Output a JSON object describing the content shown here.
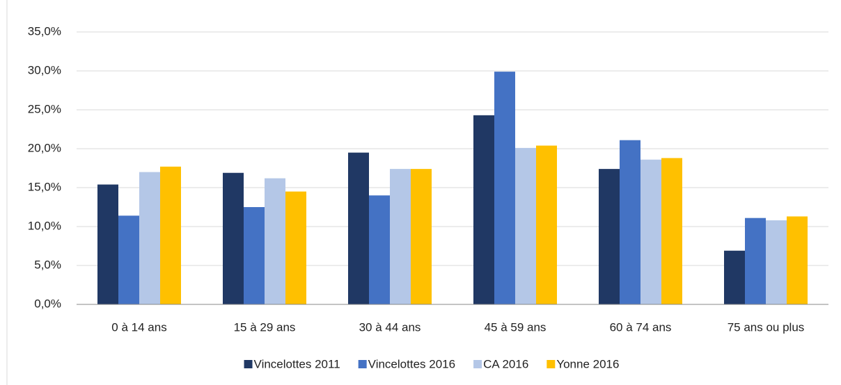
{
  "chart_data": {
    "type": "bar",
    "categories": [
      "0 à 14 ans",
      "15 à 29 ans",
      "30 à 44 ans",
      "45 à 59 ans",
      "60 à 74 ans",
      "75 ans ou plus"
    ],
    "series": [
      {
        "name": "Vincelottes 2011",
        "color": "#203864",
        "values": [
          15.4,
          16.9,
          19.5,
          24.3,
          17.4,
          6.9
        ]
      },
      {
        "name": "Vincelottes 2016",
        "color": "#4472c4",
        "values": [
          11.4,
          12.5,
          14.0,
          29.9,
          21.1,
          11.1
        ]
      },
      {
        "name": "CA 2016",
        "color": "#b4c7e7",
        "values": [
          17.0,
          16.2,
          17.4,
          20.1,
          18.6,
          10.8
        ]
      },
      {
        "name": "Yonne 2016",
        "color": "#ffc000",
        "values": [
          17.7,
          14.5,
          17.4,
          20.4,
          18.8,
          11.3
        ]
      }
    ],
    "ylim": [
      0,
      35
    ],
    "yticks": [
      {
        "value": 0,
        "label": "0,0%"
      },
      {
        "value": 5,
        "label": "5,0%"
      },
      {
        "value": 10,
        "label": "10,0%"
      },
      {
        "value": 15,
        "label": "15,0%"
      },
      {
        "value": 20,
        "label": "20,0%"
      },
      {
        "value": 25,
        "label": "25,0%"
      },
      {
        "value": 30,
        "label": "30,0%"
      },
      {
        "value": 35,
        "label": "35,0%"
      }
    ],
    "grid": true,
    "legend": "bottom"
  }
}
